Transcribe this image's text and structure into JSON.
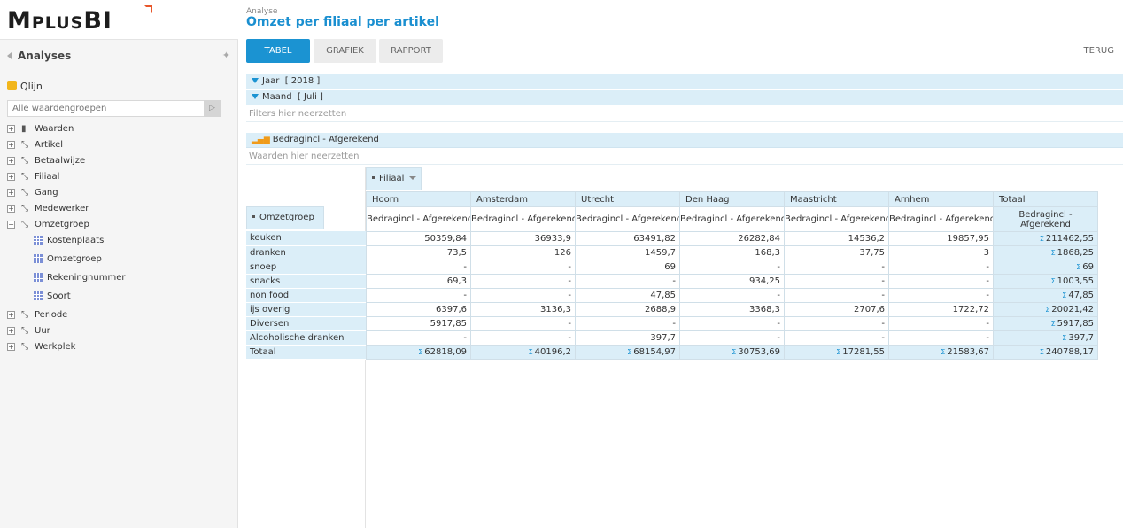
{
  "logo": {
    "text_big1": "M",
    "text_small1": "PLUS",
    "text_big2": "BI"
  },
  "sidebar": {
    "title": "Analyses",
    "cube_label": "Qlijn",
    "search_placeholder": "Alle waardengroepen",
    "tree": [
      {
        "label": "Waarden",
        "icon": "bar-chart-icon"
      },
      {
        "label": "Artikel",
        "icon": "hierarchy-icon"
      },
      {
        "label": "Betaalwijze",
        "icon": "hierarchy-icon"
      },
      {
        "label": "Filiaal",
        "icon": "hierarchy-icon"
      },
      {
        "label": "Gang",
        "icon": "hierarchy-icon"
      },
      {
        "label": "Medewerker",
        "icon": "hierarchy-icon"
      },
      {
        "label": "Omzetgroep",
        "icon": "hierarchy-icon",
        "expanded": true,
        "children": [
          "Kostenplaats",
          "Omzetgroep",
          "Rekeningnummer",
          "Soort"
        ]
      },
      {
        "label": "Periode",
        "icon": "hierarchy-icon"
      },
      {
        "label": "Uur",
        "icon": "hierarchy-icon"
      },
      {
        "label": "Werkplek",
        "icon": "hierarchy-icon"
      }
    ]
  },
  "header": {
    "crumb": "Analyse",
    "title": "Omzet per filiaal per artikel",
    "tabs": [
      "TABEL",
      "GRAFIEK",
      "RAPPORT"
    ],
    "active_tab": "TABEL",
    "back": "TERUG"
  },
  "filters": [
    {
      "name": "Jaar",
      "value": "[ 2018 ]"
    },
    {
      "name": "Maand",
      "value": "[ Juli ]"
    }
  ],
  "filter_drop": "Filters hier neerzetten",
  "value_field": "Bedragincl - Afgerekend",
  "value_drop": "Waarden hier neerzetten",
  "pivot": {
    "column_field": "Filiaal",
    "row_field": "Omzetgroep",
    "columns": [
      "Hoorn",
      "Amsterdam",
      "Utrecht",
      "Den Haag",
      "Maastricht",
      "Arnhem",
      "Totaal"
    ],
    "measure": "Bedragincl - Afgerekend",
    "rows": [
      {
        "label": "keuken",
        "values": [
          "50359,84",
          "36933,9",
          "63491,82",
          "26282,84",
          "14536,2",
          "19857,95"
        ],
        "total": "211462,55"
      },
      {
        "label": "dranken",
        "values": [
          "73,5",
          "126",
          "1459,7",
          "168,3",
          "37,75",
          "3"
        ],
        "total": "1868,25"
      },
      {
        "label": "snoep",
        "values": [
          "-",
          "-",
          "69",
          "-",
          "-",
          "-"
        ],
        "total": "69"
      },
      {
        "label": "snacks",
        "values": [
          "69,3",
          "-",
          "-",
          "934,25",
          "-",
          "-"
        ],
        "total": "1003,55"
      },
      {
        "label": "non food",
        "values": [
          "-",
          "-",
          "47,85",
          "-",
          "-",
          "-"
        ],
        "total": "47,85"
      },
      {
        "label": "ijs overig",
        "values": [
          "6397,6",
          "3136,3",
          "2688,9",
          "3368,3",
          "2707,6",
          "1722,72"
        ],
        "total": "20021,42"
      },
      {
        "label": "Diversen",
        "values": [
          "5917,85",
          "-",
          "-",
          "-",
          "-",
          "-"
        ],
        "total": "5917,85"
      },
      {
        "label": "Alcoholische dranken",
        "values": [
          "-",
          "-",
          "397,7",
          "-",
          "-",
          "-"
        ],
        "total": "397,7"
      }
    ],
    "total_label": "Totaal",
    "totals": [
      "62818,09",
      "40196,2",
      "68154,97",
      "30753,69",
      "17281,55",
      "21583,67"
    ],
    "grand_total": "240788,17",
    "sigma": "Σ"
  }
}
